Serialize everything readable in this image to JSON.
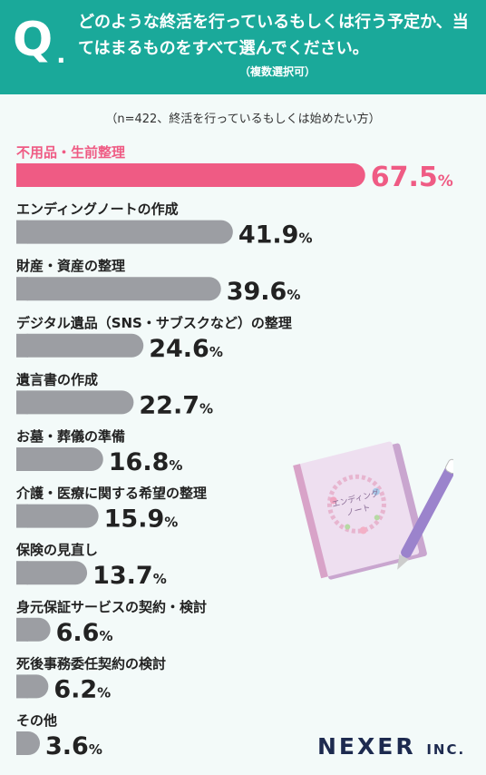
{
  "header": {
    "q_mark": "Q",
    "q_dot": ".",
    "question": "どのような終活を行っているもしくは行う予定か、当てはまるものをすべて選んでください。",
    "sub": "（複数選択可）"
  },
  "note": "（n=422、終活を行っているもしくは始めたい方）",
  "brand": {
    "name": "NEXER",
    "suffix": "INC."
  },
  "illustration": {
    "notebook_text_line1": "エンディング",
    "notebook_text_line2": "ノート"
  },
  "colors": {
    "header": "#1aa99a",
    "highlight": "#ef5b84",
    "bar": "#9c9ea3",
    "text": "#222222"
  },
  "chart_data": {
    "type": "bar",
    "orientation": "horizontal",
    "unit": "%",
    "categories": [
      "不用品・生前整理",
      "エンディングノートの作成",
      "財産・資産の整理",
      "デジタル遺品（SNS・サブスクなど）の整理",
      "遺言書の作成",
      "お墓・葬儀の準備",
      "介護・医療に関する希望の整理",
      "保険の見直し",
      "身元保証サービスの契約・検討",
      "死後事務委任契約の検討",
      "その他"
    ],
    "values": [
      67.5,
      41.9,
      39.6,
      24.6,
      22.7,
      16.8,
      15.9,
      13.7,
      6.6,
      6.2,
      3.6
    ],
    "xlim": [
      0,
      100
    ],
    "grid": false,
    "legend": "none",
    "highlight_index": 0
  }
}
